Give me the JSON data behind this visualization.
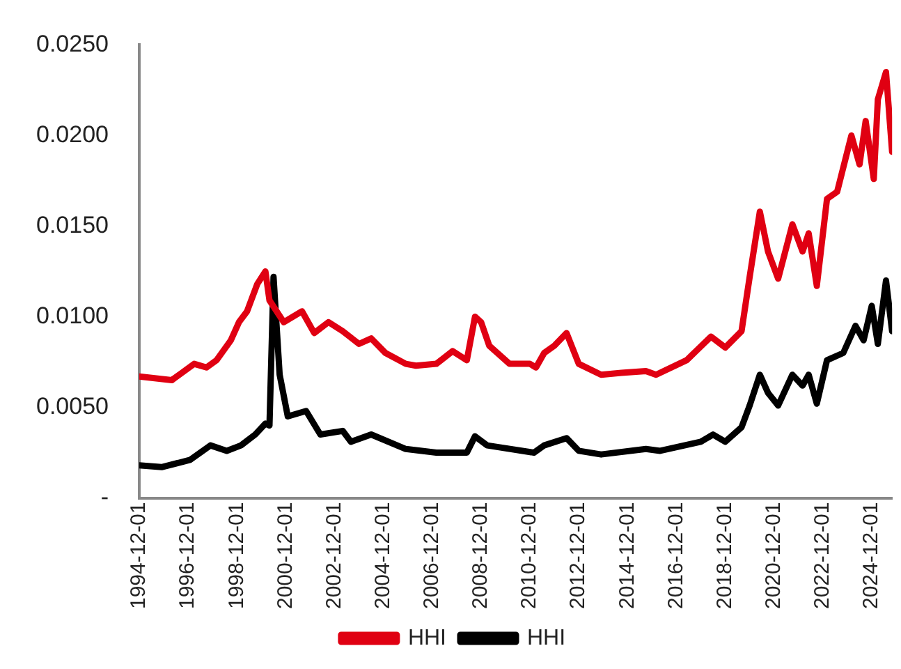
{
  "chart_data": {
    "type": "line",
    "xlim": [
      "1994-12",
      "2025-10"
    ],
    "xticks": [
      "1994-12-01",
      "1996-12-01",
      "1998-12-01",
      "2000-12-01",
      "2002-12-01",
      "2004-12-01",
      "2006-12-01",
      "2008-12-01",
      "2010-12-01",
      "2012-12-01",
      "2014-12-01",
      "2016-12-01",
      "2018-12-01",
      "2020-12-01",
      "2022-12-01",
      "2024-12-01"
    ],
    "ylim": [
      0,
      0.025
    ],
    "yticks": [
      {
        "value": 0,
        "label": "-"
      },
      {
        "value": 0.005,
        "label": "0.0050"
      },
      {
        "value": 0.01,
        "label": "0.0100"
      },
      {
        "value": 0.015,
        "label": "0.0150"
      },
      {
        "value": 0.02,
        "label": "0.0200"
      },
      {
        "value": 0.025,
        "label": "0.0250"
      }
    ],
    "grid": false,
    "legend": "bottom",
    "marker": "none",
    "line_style": "solid",
    "series": [
      {
        "name": "HHI",
        "color": "#e00012",
        "x": [
          "1994-12",
          "1996-04",
          "1997-03",
          "1997-09",
          "1998-02",
          "1998-09",
          "1999-01",
          "1999-05",
          "1999-10",
          "2000-02",
          "2000-04",
          "2000-11",
          "2001-08",
          "2002-02",
          "2002-09",
          "2003-04",
          "2003-12",
          "2004-06",
          "2005-01",
          "2005-11",
          "2006-04",
          "2007-02",
          "2007-10",
          "2008-05",
          "2008-09",
          "2008-12",
          "2009-04",
          "2010-02",
          "2010-12",
          "2011-03",
          "2011-07",
          "2011-12",
          "2012-06",
          "2012-12",
          "2013-11",
          "2014-09",
          "2015-09",
          "2016-02",
          "2017-05",
          "2018-05",
          "2018-12",
          "2019-08",
          "2019-12",
          "2020-05",
          "2020-09",
          "2021-02",
          "2021-09",
          "2022-02",
          "2022-05",
          "2022-09",
          "2023-02",
          "2023-07",
          "2024-02",
          "2024-06",
          "2024-09",
          "2025-01",
          "2025-03",
          "2025-07",
          "2025-10"
        ],
        "values": [
          0.0067,
          0.0065,
          0.0074,
          0.0072,
          0.0076,
          0.0087,
          0.0097,
          0.0103,
          0.0118,
          0.0125,
          0.0109,
          0.0097,
          0.0103,
          0.0091,
          0.0097,
          0.0092,
          0.0085,
          0.0088,
          0.008,
          0.0074,
          0.0073,
          0.0074,
          0.0081,
          0.0076,
          0.01,
          0.0097,
          0.0084,
          0.0074,
          0.0074,
          0.0072,
          0.008,
          0.0084,
          0.0091,
          0.0074,
          0.0068,
          0.0069,
          0.007,
          0.0068,
          0.0076,
          0.0089,
          0.0083,
          0.0092,
          0.0122,
          0.0158,
          0.0136,
          0.0121,
          0.0151,
          0.0136,
          0.0146,
          0.0117,
          0.0165,
          0.0169,
          0.02,
          0.0184,
          0.0208,
          0.0176,
          0.022,
          0.0235,
          0.0191
        ]
      },
      {
        "name": "HHI",
        "color": "#000000",
        "x": [
          "1994-12",
          "1995-11",
          "1997-01",
          "1997-11",
          "1998-07",
          "1999-02",
          "1999-09",
          "2000-02",
          "2000-04",
          "2000-06",
          "2000-09",
          "2001-01",
          "2001-10",
          "2002-05",
          "2003-04",
          "2003-08",
          "2004-06",
          "2005-11",
          "2007-02",
          "2008-05",
          "2008-09",
          "2009-03",
          "2011-02",
          "2011-07",
          "2012-06",
          "2012-12",
          "2013-11",
          "2015-09",
          "2016-04",
          "2017-12",
          "2018-06",
          "2018-12",
          "2019-08",
          "2019-12",
          "2020-05",
          "2020-09",
          "2021-02",
          "2021-09",
          "2022-02",
          "2022-05",
          "2022-09",
          "2023-02",
          "2023-10",
          "2024-04",
          "2024-08",
          "2024-12",
          "2025-03",
          "2025-07",
          "2025-10"
        ],
        "values": [
          0.0018,
          0.0017,
          0.0021,
          0.0029,
          0.0026,
          0.0029,
          0.0035,
          0.0041,
          0.004,
          0.0122,
          0.0068,
          0.0045,
          0.0048,
          0.0035,
          0.0037,
          0.0031,
          0.0035,
          0.0027,
          0.0025,
          0.0025,
          0.0034,
          0.0029,
          0.0025,
          0.0029,
          0.0033,
          0.0026,
          0.0024,
          0.0027,
          0.0026,
          0.0031,
          0.0035,
          0.0031,
          0.0039,
          0.0051,
          0.0068,
          0.0058,
          0.0051,
          0.0068,
          0.0062,
          0.0068,
          0.0052,
          0.0076,
          0.008,
          0.0095,
          0.0087,
          0.0106,
          0.0085,
          0.012,
          0.0092
        ]
      }
    ]
  }
}
